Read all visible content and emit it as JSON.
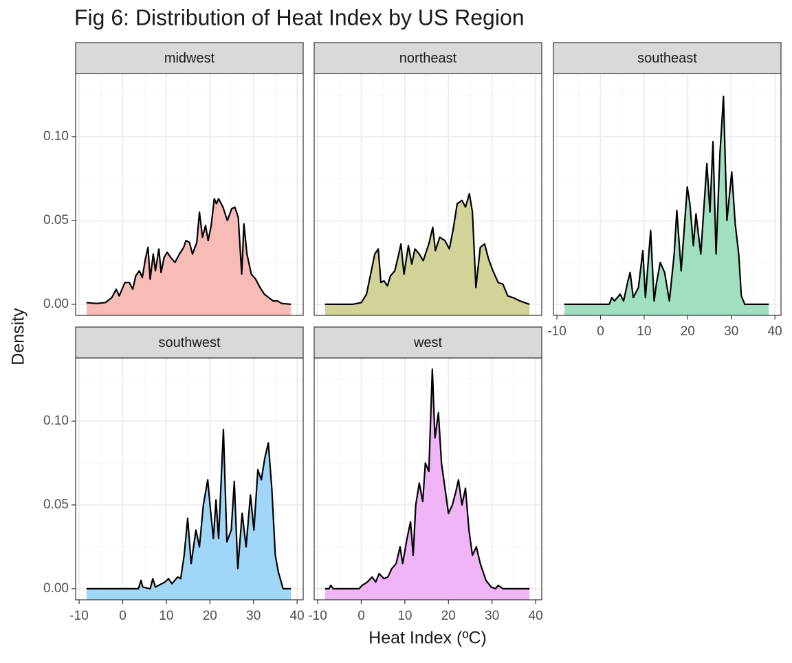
{
  "title": "Fig 6: Distribution of Heat Index by US Region",
  "x_label": "Heat Index (ºC)",
  "y_label": "Density",
  "xlim": [
    -10.8,
    41.4
  ],
  "xticks": [
    -10,
    0,
    10,
    20,
    30,
    40
  ],
  "ylim": [
    -0.0066,
    0.1377
  ],
  "yticks": [
    {
      "value": 0,
      "label": "0.00"
    },
    0.05,
    {
      "value": 0.1,
      "label": "0.10"
    }
  ],
  "grid": true,
  "chart_data": [
    {
      "type": "area",
      "title": "midwest",
      "color": "#f7bcb8",
      "x": [
        -8.3,
        -6,
        -4,
        -2.5,
        -1.5,
        -0.8,
        0.5,
        1.5,
        2.3,
        3,
        3.8,
        4.5,
        5.2,
        5.8,
        6.3,
        7,
        7.5,
        8.3,
        8.8,
        9.5,
        10.2,
        11,
        12,
        13,
        14,
        14.5,
        15.3,
        16,
        17,
        17.6,
        18.3,
        19,
        19.6,
        20.3,
        21,
        21.5,
        22,
        23,
        24,
        25,
        25.7,
        26.5,
        27.3,
        27.8,
        28.5,
        29.5,
        30.5,
        31.5,
        32.5,
        33.5,
        34.5,
        35.5,
        36.5,
        38.6
      ],
      "values": [
        0.001,
        0.0005,
        0.001,
        0.004,
        0.009,
        0.005,
        0.013,
        0.013,
        0.009,
        0.017,
        0.02,
        0.016,
        0.027,
        0.034,
        0.015,
        0.03,
        0.02,
        0.033,
        0.019,
        0.028,
        0.031,
        0.028,
        0.025,
        0.03,
        0.034,
        0.038,
        0.037,
        0.03,
        0.037,
        0.055,
        0.04,
        0.047,
        0.038,
        0.047,
        0.063,
        0.06,
        0.063,
        0.058,
        0.05,
        0.057,
        0.058,
        0.052,
        0.018,
        0.048,
        0.03,
        0.018,
        0.015,
        0.01,
        0.006,
        0.004,
        0.002,
        0.002,
        0.0005,
        0
      ]
    },
    {
      "type": "area",
      "title": "northeast",
      "color": "#d2d398",
      "x": [
        -8.3,
        -2,
        0,
        1.2,
        2,
        3.1,
        3.9,
        4.5,
        5.2,
        6,
        6.7,
        7.7,
        8.6,
        9.1,
        9.8,
        10.8,
        11.6,
        12.3,
        13.3,
        14.2,
        15.5,
        16.4,
        17,
        18,
        19.2,
        20.2,
        21.1,
        22,
        23.1,
        23.9,
        24.8,
        25.5,
        26.3,
        27.3,
        28.3,
        29.2,
        30.2,
        31.4,
        32.5,
        33.6,
        34.8,
        36.4,
        38,
        38.6
      ],
      "values": [
        0,
        0,
        0.001,
        0.006,
        0.016,
        0.03,
        0.033,
        0.013,
        0.014,
        0.011,
        0.017,
        0.02,
        0.03,
        0.036,
        0.018,
        0.035,
        0.024,
        0.033,
        0.03,
        0.026,
        0.036,
        0.046,
        0.032,
        0.04,
        0.038,
        0.033,
        0.045,
        0.06,
        0.062,
        0.058,
        0.066,
        0.055,
        0.01,
        0.034,
        0.036,
        0.027,
        0.02,
        0.013,
        0.012,
        0.005,
        0.004,
        0.002,
        0.0005,
        0
      ]
    },
    {
      "type": "area",
      "title": "southeast",
      "color": "#a0e0c0",
      "x": [
        -8.3,
        2,
        2.6,
        3.2,
        4.5,
        5.3,
        6.2,
        6.8,
        7.5,
        8.7,
        9.7,
        10.3,
        11.5,
        12.3,
        12.8,
        13.7,
        14.7,
        15.8,
        16.9,
        17.5,
        18.5,
        19.9,
        20.5,
        21.3,
        21.9,
        23,
        24.4,
        25.1,
        25.8,
        26.5,
        27.4,
        28.2,
        29,
        30.1,
        30.9,
        31.7,
        32.3,
        33.1,
        38.6
      ],
      "values": [
        0,
        0,
        0.004,
        0.002,
        0.006,
        0.002,
        0.013,
        0.019,
        0.004,
        0.01,
        0.032,
        0.004,
        0.044,
        0.002,
        0.012,
        0.025,
        0.019,
        0.002,
        0.03,
        0.056,
        0.02,
        0.07,
        0.06,
        0.035,
        0.054,
        0.03,
        0.084,
        0.055,
        0.097,
        0.03,
        0.09,
        0.124,
        0.05,
        0.079,
        0.048,
        0.03,
        0.005,
        0,
        0
      ]
    },
    {
      "type": "area",
      "title": "southwest",
      "color": "#a0d6f8",
      "x": [
        -8.3,
        3.6,
        4.2,
        4.6,
        6.3,
        6.9,
        7.5,
        9.7,
        10.5,
        11.3,
        12.6,
        13.3,
        14.1,
        14.9,
        15.7,
        16.8,
        17.6,
        18.5,
        19.5,
        20.1,
        20.8,
        21.4,
        22,
        23.1,
        23.9,
        24.9,
        25.6,
        26.4,
        27.4,
        28.3,
        29.3,
        30.1,
        31,
        31.8,
        32.6,
        33.4,
        34.2,
        35,
        35.7,
        36.8,
        38.6
      ],
      "values": [
        0,
        0,
        0.005,
        0.001,
        0,
        0.006,
        0.001,
        0.004,
        0.006,
        0.003,
        0.007,
        0.006,
        0.02,
        0.042,
        0.015,
        0.035,
        0.025,
        0.05,
        0.065,
        0.048,
        0.03,
        0.053,
        0.03,
        0.095,
        0.028,
        0.035,
        0.064,
        0.012,
        0.045,
        0.025,
        0.056,
        0.035,
        0.071,
        0.065,
        0.078,
        0.087,
        0.06,
        0.02,
        0.01,
        0,
        0
      ]
    },
    {
      "type": "area",
      "title": "west",
      "color": "#f0b5f6",
      "x": [
        -8.3,
        -7.4,
        -7,
        -6.4,
        -0.5,
        0.2,
        1.4,
        2.5,
        3.3,
        4.1,
        5.2,
        6.1,
        7,
        8,
        8.9,
        9.5,
        10.5,
        11.3,
        11.9,
        12.5,
        13.3,
        14.1,
        14.7,
        15.5,
        16.3,
        16.9,
        17.7,
        18.4,
        19.2,
        20,
        20.9,
        21.7,
        22.3,
        23.1,
        23.9,
        24.7,
        25.5,
        26.4,
        27.3,
        28.6,
        29.8,
        30.8,
        31.4,
        32.5,
        38.6
      ],
      "values": [
        0,
        0,
        0.002,
        0,
        0,
        0.002,
        0.004,
        0.007,
        0.004,
        0.009,
        0.006,
        0.007,
        0.012,
        0.015,
        0.025,
        0.015,
        0.03,
        0.04,
        0.02,
        0.05,
        0.063,
        0.052,
        0.075,
        0.07,
        0.131,
        0.09,
        0.105,
        0.075,
        0.06,
        0.045,
        0.05,
        0.058,
        0.065,
        0.05,
        0.06,
        0.035,
        0.02,
        0.025,
        0.015,
        0.005,
        0.001,
        0,
        0.002,
        0,
        0
      ]
    }
  ]
}
